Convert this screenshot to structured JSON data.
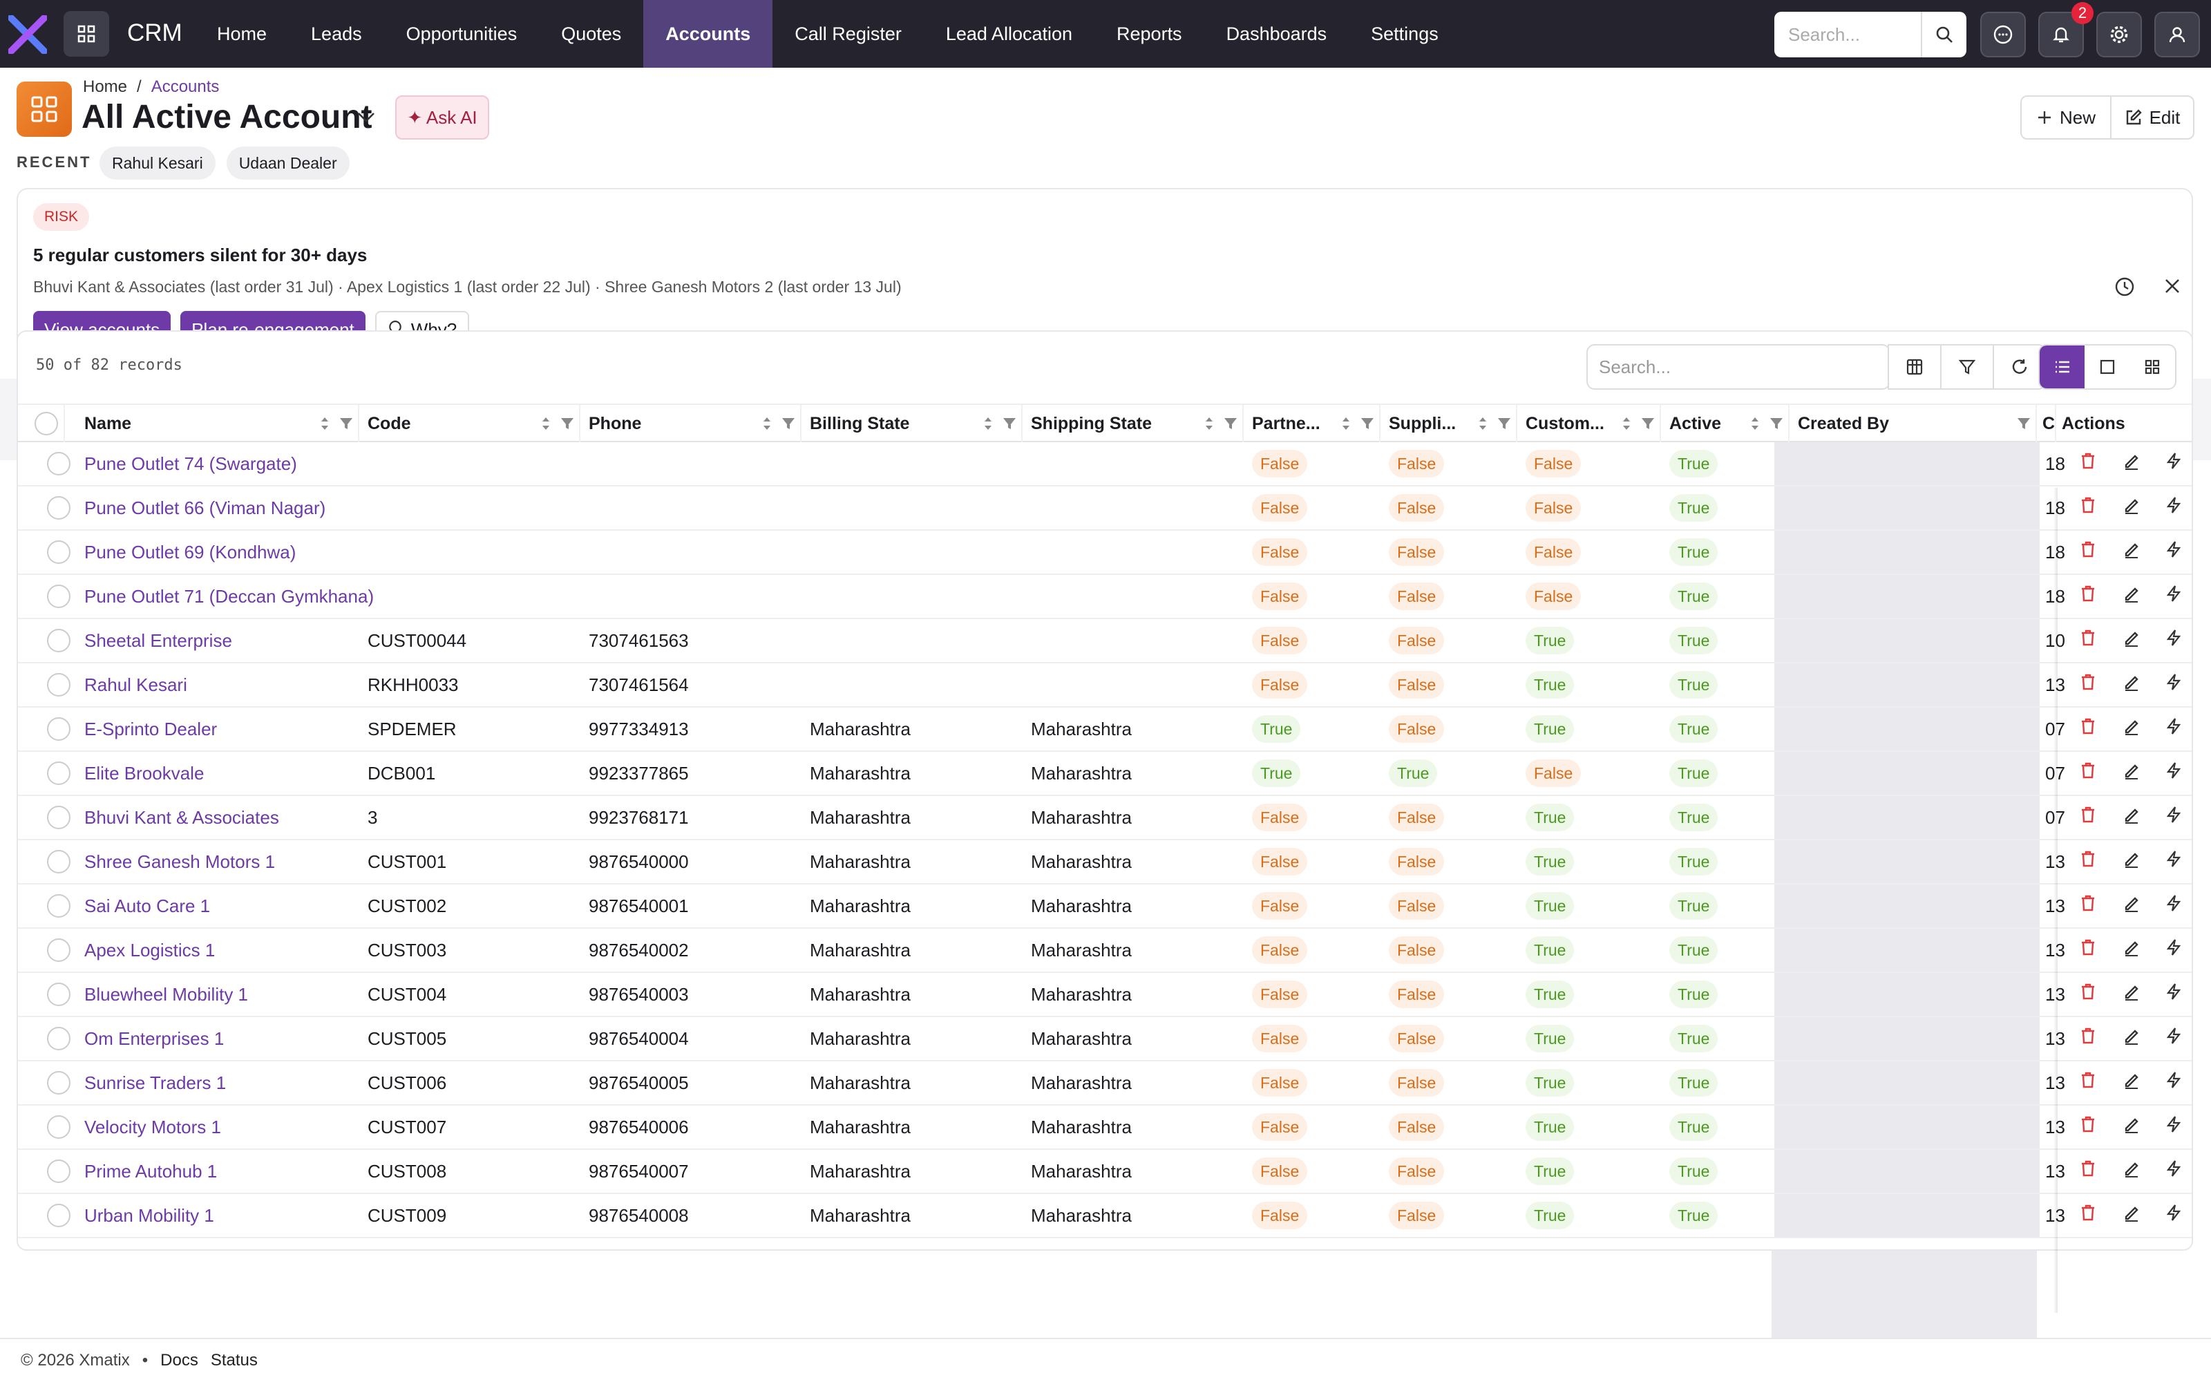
{
  "app": {
    "brand": "CRM",
    "accent": "#6e3aa8"
  },
  "nav": [
    "Home",
    "Leads",
    "Opportunities",
    "Quotes",
    "Accounts",
    "Call Register",
    "Lead Allocation",
    "Reports",
    "Dashboards",
    "Settings"
  ],
  "active_nav": "Accounts",
  "topbar": {
    "search_placeholder": "Search...",
    "notification_count": "2"
  },
  "breadcrumb": {
    "home": "Home",
    "sep": "/",
    "current": "Accounts"
  },
  "page": {
    "title": "All Active Account",
    "ask_ai": "✦ Ask AI",
    "new_label": "New",
    "edit_label": "Edit"
  },
  "recent": {
    "label": "RECENT",
    "items": [
      "Rahul Kesari",
      "Udaan Dealer"
    ]
  },
  "insight": {
    "tag": "RISK",
    "headline": "5 regular customers silent for 30+ days",
    "detail": "Bhuvi Kant & Associates (last order 31 Jul) · Apex Logistics 1 (last order 22 Jul) · Shree Ganesh Motors 2 (last order 13 Jul)",
    "actions": [
      "View accounts",
      "Plan re-engagement"
    ],
    "why_label": "Why?"
  },
  "grid": {
    "records": "50 of 82 records",
    "search_placeholder": "Search...",
    "columns": [
      "Name",
      "Code",
      "Phone",
      "Billing State",
      "Shipping State",
      "Partne...",
      "Suppli...",
      "Custom...",
      "Active",
      "Created By",
      "Cr",
      "Actions"
    ],
    "rows": [
      {
        "name": "Pune Outlet 74 (Swargate)",
        "code": "",
        "phone": "",
        "billing": "",
        "shipping": "",
        "partner": "False",
        "supplier": "False",
        "customer": "False",
        "active": "True",
        "cr": "18"
      },
      {
        "name": "Pune Outlet 66 (Viman Nagar)",
        "code": "",
        "phone": "",
        "billing": "",
        "shipping": "",
        "partner": "False",
        "supplier": "False",
        "customer": "False",
        "active": "True",
        "cr": "18"
      },
      {
        "name": "Pune Outlet 69 (Kondhwa)",
        "code": "",
        "phone": "",
        "billing": "",
        "shipping": "",
        "partner": "False",
        "supplier": "False",
        "customer": "False",
        "active": "True",
        "cr": "18"
      },
      {
        "name": "Pune Outlet 71 (Deccan Gymkhana)",
        "code": "",
        "phone": "",
        "billing": "",
        "shipping": "",
        "partner": "False",
        "supplier": "False",
        "customer": "False",
        "active": "True",
        "cr": "18"
      },
      {
        "name": "Sheetal Enterprise",
        "code": "CUST00044",
        "phone": "7307461563",
        "billing": "",
        "shipping": "",
        "partner": "False",
        "supplier": "False",
        "customer": "True",
        "active": "True",
        "cr": "10"
      },
      {
        "name": "Rahul Kesari",
        "code": "RKHH0033",
        "phone": "7307461564",
        "billing": "",
        "shipping": "",
        "partner": "False",
        "supplier": "False",
        "customer": "True",
        "active": "True",
        "cr": "13"
      },
      {
        "name": "E-Sprinto Dealer",
        "code": "SPDEMER",
        "phone": "9977334913",
        "billing": "Maharashtra",
        "shipping": "Maharashtra",
        "partner": "True",
        "supplier": "False",
        "customer": "True",
        "active": "True",
        "cr": "07"
      },
      {
        "name": "Elite Brookvale",
        "code": "DCB001",
        "phone": "9923377865",
        "billing": "Maharashtra",
        "shipping": "Maharashtra",
        "partner": "True",
        "supplier": "True",
        "customer": "False",
        "active": "True",
        "cr": "07"
      },
      {
        "name": "Bhuvi Kant & Associates",
        "code": "3",
        "phone": "9923768171",
        "billing": "Maharashtra",
        "shipping": "Maharashtra",
        "partner": "False",
        "supplier": "False",
        "customer": "True",
        "active": "True",
        "cr": "07"
      },
      {
        "name": "Shree Ganesh Motors 1",
        "code": "CUST001",
        "phone": "9876540000",
        "billing": "Maharashtra",
        "shipping": "Maharashtra",
        "partner": "False",
        "supplier": "False",
        "customer": "True",
        "active": "True",
        "cr": "13"
      },
      {
        "name": "Sai Auto Care 1",
        "code": "CUST002",
        "phone": "9876540001",
        "billing": "Maharashtra",
        "shipping": "Maharashtra",
        "partner": "False",
        "supplier": "False",
        "customer": "True",
        "active": "True",
        "cr": "13"
      },
      {
        "name": "Apex Logistics 1",
        "code": "CUST003",
        "phone": "9876540002",
        "billing": "Maharashtra",
        "shipping": "Maharashtra",
        "partner": "False",
        "supplier": "False",
        "customer": "True",
        "active": "True",
        "cr": "13"
      },
      {
        "name": "Bluewheel Mobility 1",
        "code": "CUST004",
        "phone": "9876540003",
        "billing": "Maharashtra",
        "shipping": "Maharashtra",
        "partner": "False",
        "supplier": "False",
        "customer": "True",
        "active": "True",
        "cr": "13"
      },
      {
        "name": "Om Enterprises 1",
        "code": "CUST005",
        "phone": "9876540004",
        "billing": "Maharashtra",
        "shipping": "Maharashtra",
        "partner": "False",
        "supplier": "False",
        "customer": "True",
        "active": "True",
        "cr": "13"
      },
      {
        "name": "Sunrise Traders 1",
        "code": "CUST006",
        "phone": "9876540005",
        "billing": "Maharashtra",
        "shipping": "Maharashtra",
        "partner": "False",
        "supplier": "False",
        "customer": "True",
        "active": "True",
        "cr": "13"
      },
      {
        "name": "Velocity Motors 1",
        "code": "CUST007",
        "phone": "9876540006",
        "billing": "Maharashtra",
        "shipping": "Maharashtra",
        "partner": "False",
        "supplier": "False",
        "customer": "True",
        "active": "True",
        "cr": "13"
      },
      {
        "name": "Prime Autohub 1",
        "code": "CUST008",
        "phone": "9876540007",
        "billing": "Maharashtra",
        "shipping": "Maharashtra",
        "partner": "False",
        "supplier": "False",
        "customer": "True",
        "active": "True",
        "cr": "13"
      },
      {
        "name": "Urban Mobility 1",
        "code": "CUST009",
        "phone": "9876540008",
        "billing": "Maharashtra",
        "shipping": "Maharashtra",
        "partner": "False",
        "supplier": "False",
        "customer": "True",
        "active": "True",
        "cr": "13"
      }
    ]
  },
  "footer": {
    "copyright": "© 2026 Xmatix",
    "dot": "•",
    "links": [
      "Docs",
      "Status"
    ]
  }
}
